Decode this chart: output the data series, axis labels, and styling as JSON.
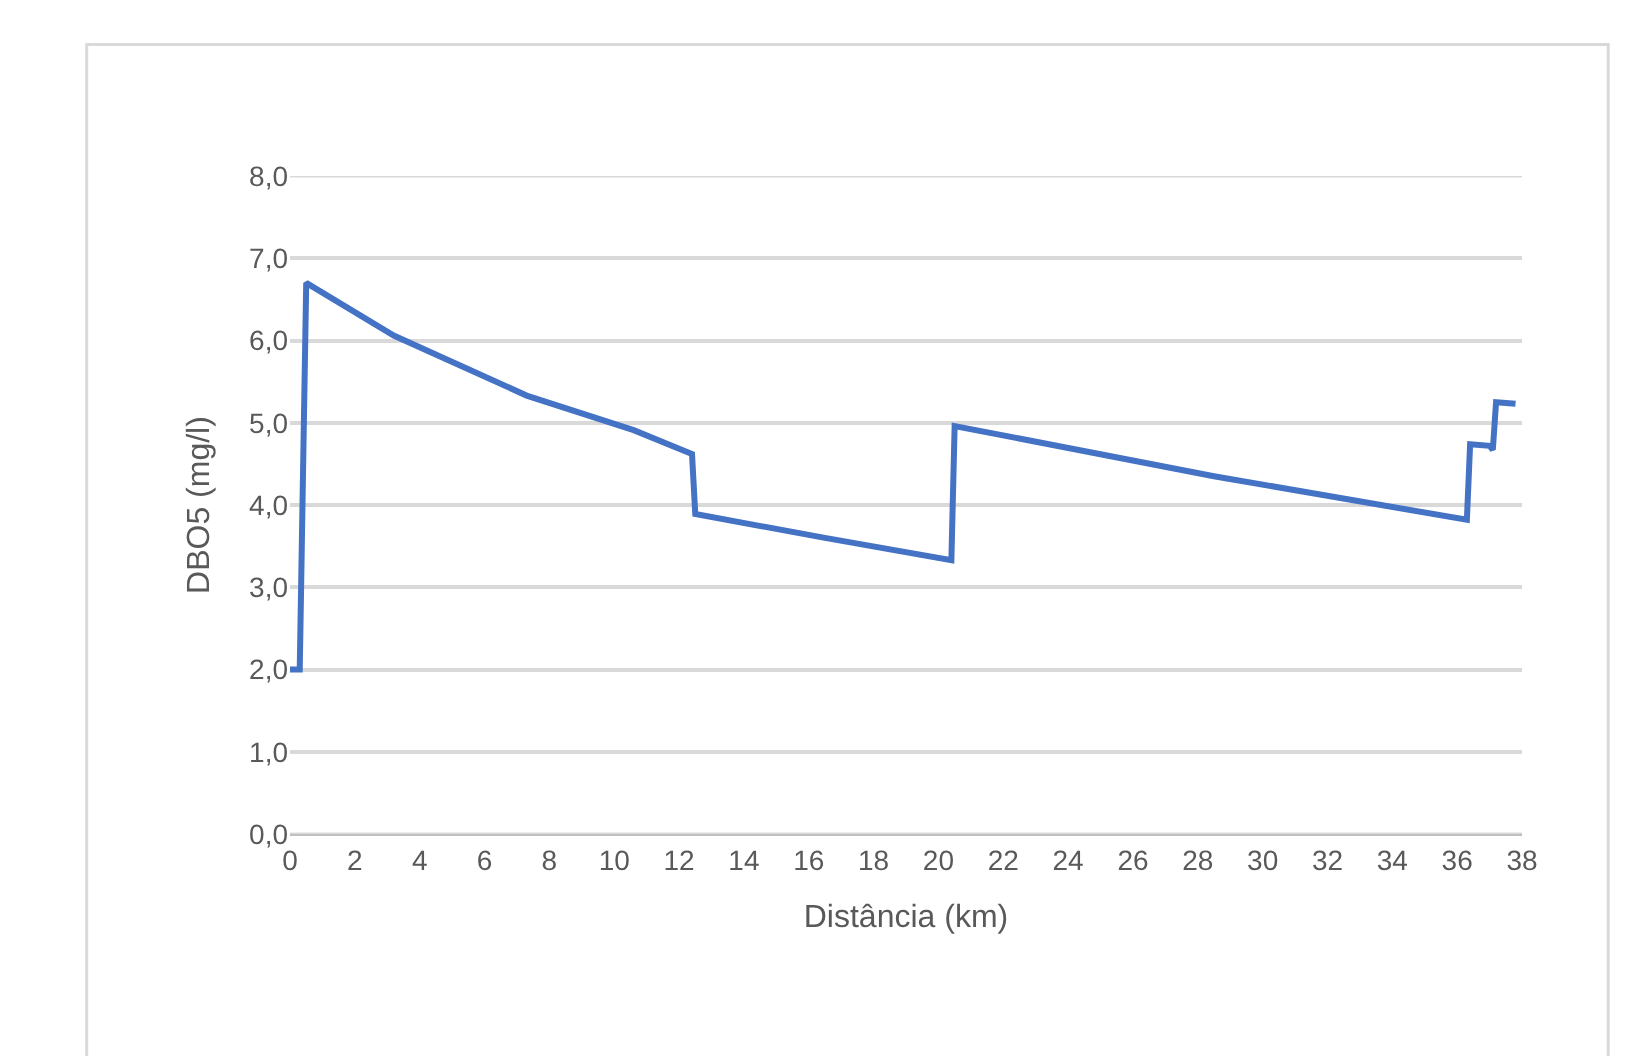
{
  "chart_data": {
    "type": "line",
    "xlabel": "Distância (km)",
    "ylabel": "DBO5 (mg/l)",
    "x": [
      0,
      0.3,
      0.5,
      3.2,
      7.3,
      10.6,
      12.4,
      12.5,
      16.5,
      20.4,
      20.5,
      28.5,
      36.3,
      36.4,
      37.0,
      37.1,
      37.2,
      37.8
    ],
    "series": [
      {
        "color": "#4472c4",
        "values": [
          2.0,
          2.0,
          6.7,
          6.06,
          5.33,
          4.91,
          4.62,
          3.89,
          3.6,
          3.33,
          4.96,
          4.35,
          3.82,
          4.74,
          4.72,
          4.67,
          5.25,
          5.23
        ]
      }
    ],
    "xlim": [
      0,
      38
    ],
    "xticks": [
      0,
      2,
      4,
      6,
      8,
      10,
      12,
      14,
      16,
      18,
      20,
      22,
      24,
      26,
      28,
      30,
      32,
      34,
      36,
      38
    ],
    "ylim": [
      0,
      8
    ],
    "yticks": [
      {
        "value": 0,
        "label": "0,0"
      },
      {
        "value": 1,
        "label": "1,0"
      },
      {
        "value": 2,
        "label": "2,0"
      },
      {
        "value": 3,
        "label": "3,0"
      },
      {
        "value": 4,
        "label": "4,0"
      },
      {
        "value": 5,
        "label": "5,0"
      },
      {
        "value": 6,
        "label": "6,0"
      },
      {
        "value": 7,
        "label": "7,0"
      },
      {
        "value": 8,
        "label": "8,0"
      }
    ],
    "grid": "y",
    "marker": "none",
    "line_style": "solid"
  }
}
